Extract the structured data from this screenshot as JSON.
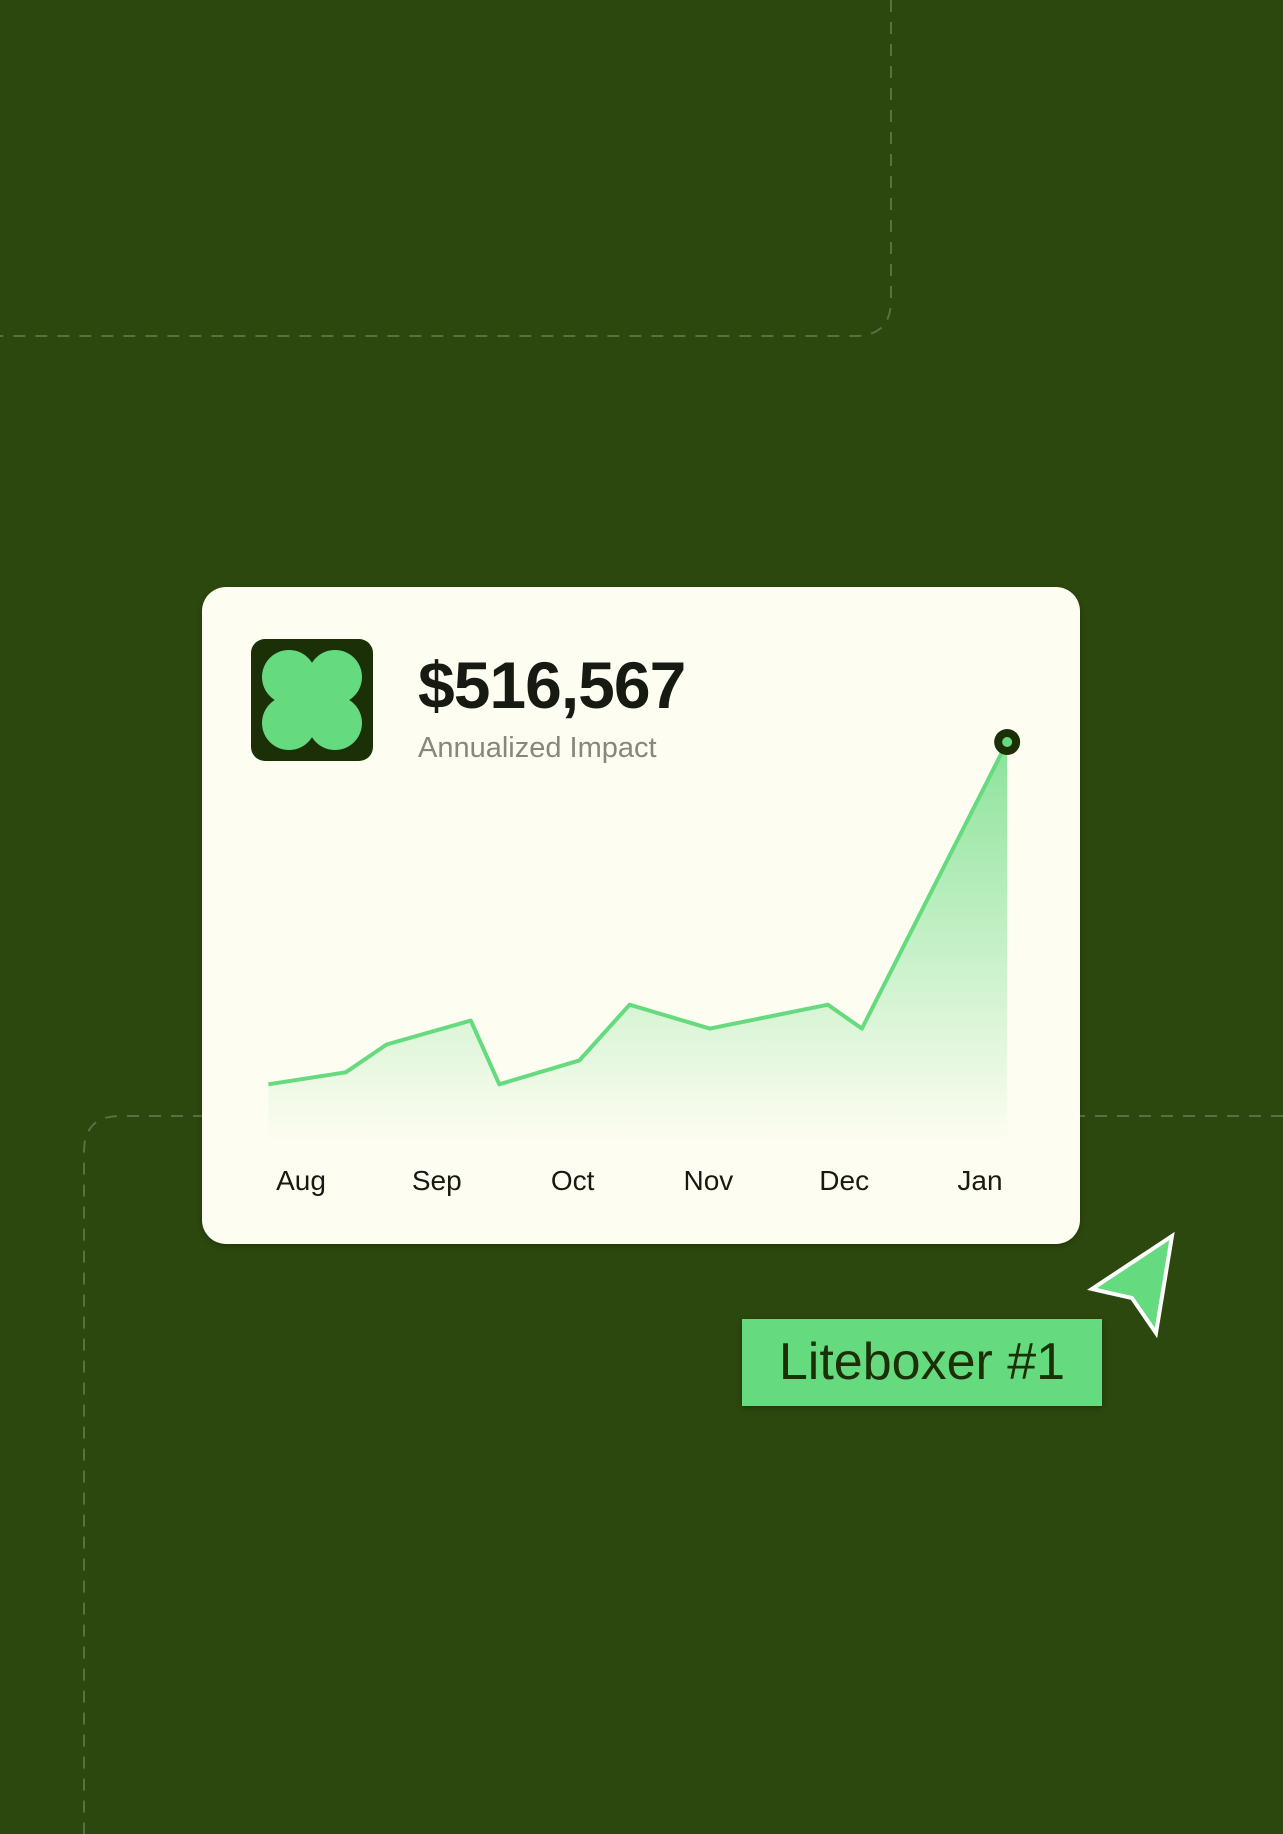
{
  "colors": {
    "background": "#2c480e",
    "card": "#fdfdf1",
    "accent": "#66da7e",
    "dark": "#1c3008"
  },
  "card": {
    "logo_icon": "clover-logo-icon",
    "amount": "$516,567",
    "subtitle": "Annualized Impact"
  },
  "chart_data": {
    "type": "area",
    "categories": [
      "Aug",
      "Sep",
      "Oct",
      "Nov",
      "Dec",
      "Jan"
    ],
    "x": [
      -0.24,
      0.33,
      0.63,
      1.25,
      1.46,
      2.05,
      2.42,
      3.01,
      3.88,
      4.13,
      5.2
    ],
    "values": [
      14,
      17,
      24,
      30,
      14,
      20,
      34,
      28,
      34,
      28,
      100
    ],
    "ylim": [
      0,
      100
    ],
    "grid": false,
    "highlight": "last-point"
  },
  "tag": {
    "label": "Liteboxer #1",
    "cursor_icon": "cursor-arrow-icon"
  }
}
